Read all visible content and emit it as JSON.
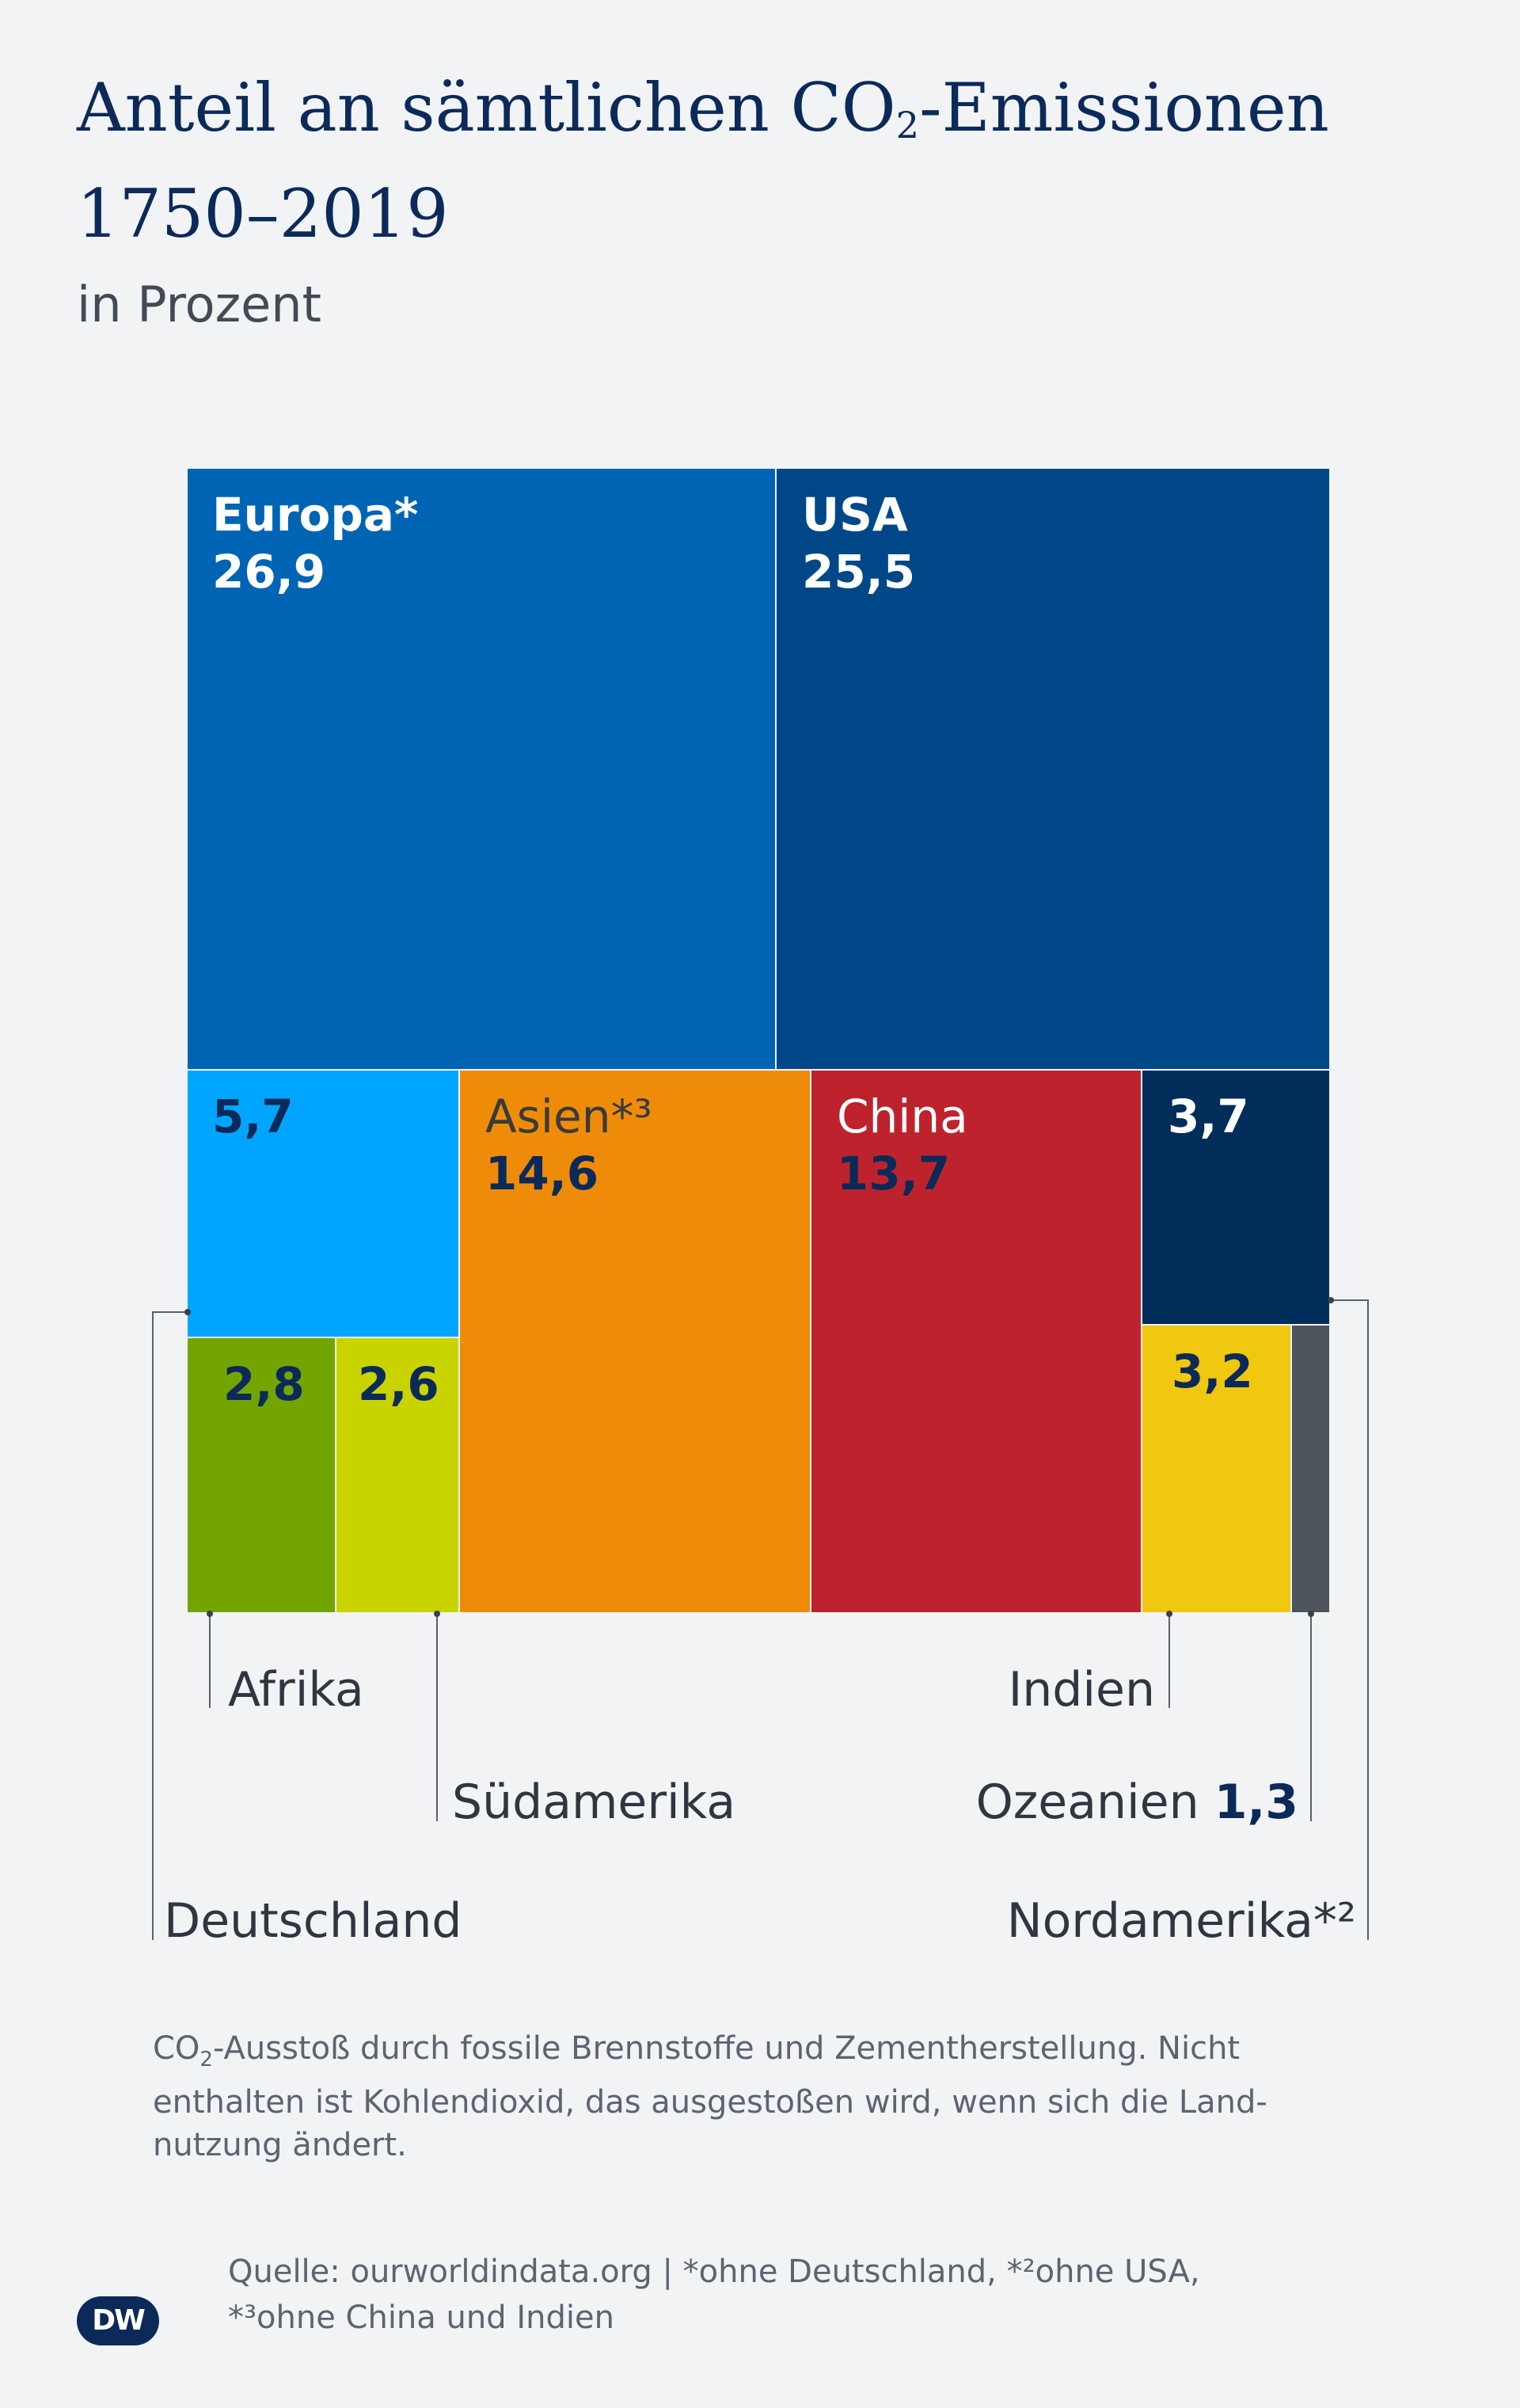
{
  "title": {
    "line1_pre": "Anteil an sämtlichen CO",
    "line1_sub": "2",
    "line1_post": "-Emissionen",
    "line2": "1750–2019"
  },
  "subtitle": "in Prozent",
  "chart_data": {
    "type": "treemap",
    "unit": "Prozent",
    "items": [
      {
        "name": "Europa*",
        "value": 26.9,
        "value_label": "26,9",
        "color": "#0064b4"
      },
      {
        "name": "USA",
        "value": 25.5,
        "value_label": "25,5",
        "color": "#004788"
      },
      {
        "name": "Deutschland",
        "value": 5.7,
        "value_label": "5,7",
        "color": "#00a5ff"
      },
      {
        "name": "Asien*³",
        "value": 14.6,
        "value_label": "14,6",
        "color": "#ee8c0a"
      },
      {
        "name": "China",
        "value": 13.7,
        "value_label": "13,7",
        "color": "#be232d"
      },
      {
        "name": "Nordamerika*²",
        "value": 3.7,
        "value_label": "3,7",
        "color": "#002d5a"
      },
      {
        "name": "Afrika",
        "value": 2.8,
        "value_label": "2,8",
        "color": "#72a500"
      },
      {
        "name": "Südamerika",
        "value": 2.6,
        "value_label": "2,6",
        "color": "#c8d300"
      },
      {
        "name": "Indien",
        "value": 3.2,
        "value_label": "3,2",
        "color": "#f0c80f"
      },
      {
        "name": "Ozeanien",
        "value": 1.3,
        "value_label": "1,3",
        "color": "#4e545c"
      }
    ]
  },
  "labels": {
    "afrika": "Afrika",
    "suedamerika": "Südamerika",
    "deutschland": "Deutschland",
    "indien": "Indien",
    "ozeanien": "Ozeanien",
    "ozeanien_value": "1,3",
    "nordamerika": "Nordamerika*²"
  },
  "note": {
    "pre": "CO",
    "sub": "2",
    "post": "-Ausstoß durch fossile Brennstoffe und Zementherstellung. Nicht enthalten ist Kohlendioxid, das ausgestoßen wird, wenn sich die Land-nutzung ändert."
  },
  "source": {
    "line1": "Quelle: ourworldindata.org | *ohne Deutschland, *²ohne USA,",
    "line2": "*³ohne China und Indien"
  },
  "logo": "DW"
}
